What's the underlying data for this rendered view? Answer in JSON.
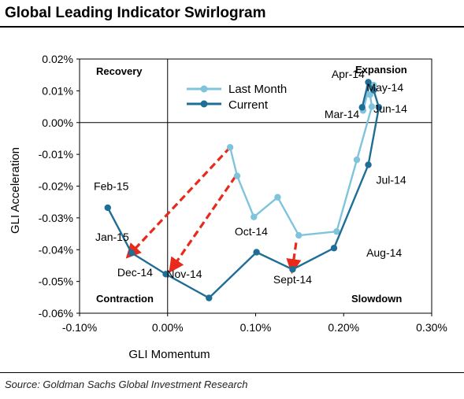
{
  "title": "Global Leading Indicator Swirlogram",
  "source": "Source: Goldman Sachs Global Investment Research",
  "chart_data": {
    "type": "line",
    "xlabel": "GLI Momentum",
    "ylabel": "GLI Acceleration",
    "xlim": [
      -0.1,
      0.3
    ],
    "ylim": [
      -0.06,
      0.02
    ],
    "x_ticks": [
      {
        "value": -0.1,
        "label": "-0.10%"
      },
      {
        "value": 0.0,
        "label": "0.00%"
      },
      {
        "value": 0.1,
        "label": "0.10%"
      },
      {
        "value": 0.2,
        "label": "0.20%"
      },
      {
        "value": 0.3,
        "label": "0.30%"
      }
    ],
    "y_ticks": [
      {
        "value": 0.02,
        "label": "0.02%"
      },
      {
        "value": 0.01,
        "label": "0.01%"
      },
      {
        "value": 0.0,
        "label": "0.00%"
      },
      {
        "value": -0.01,
        "label": "-0.01%"
      },
      {
        "value": -0.02,
        "label": "-0.02%"
      },
      {
        "value": -0.03,
        "label": "-0.03%"
      },
      {
        "value": -0.04,
        "label": "-0.04%"
      },
      {
        "value": -0.05,
        "label": "-0.05%"
      },
      {
        "value": -0.06,
        "label": "-0.06%"
      }
    ],
    "quadrants": {
      "top_left": "Recovery",
      "top_right": "Expansion",
      "bottom_left": "Contraction",
      "bottom_right": "Slowdown"
    },
    "legend": {
      "position": "top-left-inside"
    },
    "series": [
      {
        "name": "Last Month",
        "color": "#7fc4dc",
        "points": [
          {
            "x": 0.222,
            "y": 0.0038
          },
          {
            "x": 0.229,
            "y": 0.0112
          },
          {
            "x": 0.234,
            "y": 0.0118
          },
          {
            "x": 0.23,
            "y": 0.0088
          },
          {
            "x": 0.232,
            "y": 0.005
          },
          {
            "x": 0.215,
            "y": -0.0117
          },
          {
            "x": 0.192,
            "y": -0.0343
          },
          {
            "x": 0.149,
            "y": -0.0355
          },
          {
            "x": 0.125,
            "y": -0.0235
          },
          {
            "x": 0.098,
            "y": -0.0297
          },
          {
            "x": 0.079,
            "y": -0.0168
          },
          {
            "x": 0.071,
            "y": -0.0078
          }
        ]
      },
      {
        "name": "Current",
        "color": "#1f6e96",
        "points": [
          {
            "x": 0.221,
            "y": 0.0048
          },
          {
            "x": 0.228,
            "y": 0.0127
          },
          {
            "x": 0.234,
            "y": 0.0102
          },
          {
            "x": 0.24,
            "y": 0.0048
          },
          {
            "x": 0.228,
            "y": -0.0133
          },
          {
            "x": 0.189,
            "y": -0.0395
          },
          {
            "x": 0.142,
            "y": -0.0462
          },
          {
            "x": 0.101,
            "y": -0.0408
          },
          {
            "x": 0.047,
            "y": -0.0552
          },
          {
            "x": -0.002,
            "y": -0.0477
          },
          {
            "x": -0.041,
            "y": -0.041
          },
          {
            "x": -0.068,
            "y": -0.0268
          }
        ]
      }
    ],
    "labels": [
      {
        "text": "Apr-14",
        "x": 0.205,
        "y": 0.014
      },
      {
        "text": "May-14",
        "x": 0.247,
        "y": 0.0098
      },
      {
        "text": "Mar-14",
        "x": 0.198,
        "y": 0.0014
      },
      {
        "text": "Jun-14",
        "x": 0.253,
        "y": 0.0032
      },
      {
        "text": "Jul-14",
        "x": 0.254,
        "y": -0.0192
      },
      {
        "text": "Aug-14",
        "x": 0.246,
        "y": -0.0422
      },
      {
        "text": "Sept-14",
        "x": 0.142,
        "y": -0.0506
      },
      {
        "text": "Oct-14",
        "x": 0.095,
        "y": -0.0355
      },
      {
        "text": "Nov-14",
        "x": 0.019,
        "y": -0.0488
      },
      {
        "text": "Dec-14",
        "x": -0.037,
        "y": -0.0484
      },
      {
        "text": "Jan-15",
        "x": -0.063,
        "y": -0.0372
      },
      {
        "text": "Feb-15",
        "x": -0.064,
        "y": -0.0212
      }
    ],
    "arrows": [
      {
        "from": [
          0.071,
          -0.0078
        ],
        "to": [
          -0.042,
          -0.0412
        ]
      },
      {
        "from": [
          0.077,
          -0.017
        ],
        "to": [
          0.006,
          -0.0455
        ]
      },
      {
        "from": [
          0.146,
          -0.0378
        ],
        "to": [
          0.142,
          -0.0455
        ]
      }
    ],
    "arrow_color": "#e8291c"
  }
}
